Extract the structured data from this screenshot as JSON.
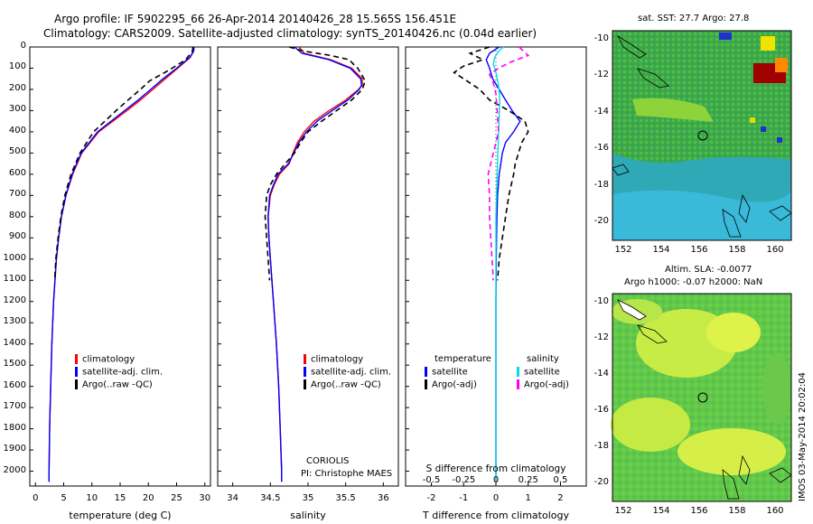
{
  "title_line1": "Argo profile: IF 5902295_66 26-Apr-2014 20140426_28 15.565S 156.451E",
  "title_line2": "Climatology: CARS2009. Satellite-adjusted climatology: synTS_20140426.nc (0.04d earlier)",
  "credit": {
    "source": "CORIOLIS",
    "pi": "PI: Christophe MAES"
  },
  "timestamp": "IMOS 03-May-2014 20:02:04",
  "map_sst": {
    "title": "sat. SST: 27.7 Argo: 27.8",
    "lon_ticks": [
      "152",
      "154",
      "156",
      "158",
      "160"
    ],
    "lat_ticks": [
      "-10",
      "-12",
      "-14",
      "-16",
      "-18",
      "-20"
    ]
  },
  "map_sla": {
    "title1": "Altim. SLA: -0.0077",
    "title2": "Argo h1000: -0.07 h2000: NaN",
    "lon_ticks": [
      "152",
      "154",
      "156",
      "158",
      "160"
    ],
    "lat_ticks": [
      "-10",
      "-12",
      "-14",
      "-16",
      "-18",
      "-20"
    ]
  },
  "colors": {
    "climatology": "#ff0000",
    "satellite": "#0000ff",
    "argo": "#000000",
    "sal_satellite": "#00e0e0",
    "sal_argo": "#ff00ff"
  },
  "chart_data": [
    {
      "type": "line",
      "name": "temperature",
      "xlabel": "temperature (deg C)",
      "ylabel": "",
      "xlim": [
        -1,
        31
      ],
      "ylim": [
        2070,
        0
      ],
      "xticks": [
        "0",
        "5",
        "10",
        "15",
        "20",
        "25",
        "30"
      ],
      "yticks": [
        "0",
        "100",
        "200",
        "300",
        "400",
        "500",
        "600",
        "700",
        "800",
        "900",
        "1000",
        "1100",
        "1200",
        "1300",
        "1400",
        "1500",
        "1600",
        "1700",
        "1800",
        "1900",
        "2000"
      ],
      "legend": [
        "climatology",
        "satellite-adj. clim.",
        "Argo(..raw -QC)"
      ],
      "series": [
        {
          "name": "climatology",
          "color": "#ff0000",
          "depth": [
            0,
            20,
            50,
            100,
            150,
            200,
            250,
            300,
            400,
            500,
            600,
            700,
            800,
            900,
            1000,
            1200,
            1400,
            1600,
            1800,
            2000,
            2050
          ],
          "values": [
            28.0,
            28.0,
            27.4,
            25.2,
            23.0,
            20.8,
            18.6,
            16.2,
            11.2,
            8.2,
            6.6,
            5.4,
            4.6,
            4.1,
            3.7,
            3.2,
            2.9,
            2.7,
            2.5,
            2.4,
            2.4
          ]
        },
        {
          "name": "satellite-adj. clim.",
          "color": "#0000ff",
          "depth": [
            0,
            20,
            50,
            100,
            150,
            200,
            250,
            300,
            400,
            500,
            600,
            700,
            800,
            900,
            1000,
            1200,
            1400,
            1600,
            1800,
            2000,
            2050
          ],
          "values": [
            28.1,
            28.0,
            27.3,
            25.0,
            22.6,
            20.4,
            18.2,
            15.8,
            11.0,
            8.1,
            6.5,
            5.4,
            4.6,
            4.1,
            3.7,
            3.2,
            2.9,
            2.7,
            2.5,
            2.4,
            2.4
          ]
        },
        {
          "name": "Argo(..raw -QC)",
          "color": "#000000",
          "depth": [
            0,
            20,
            60,
            110,
            160,
            200,
            250,
            300,
            400,
            500,
            600,
            700,
            800,
            900,
            1000,
            1100
          ],
          "values": [
            27.9,
            27.8,
            26.6,
            23.6,
            20.2,
            18.6,
            16.4,
            14.3,
            10.3,
            7.9,
            6.3,
            5.2,
            4.5,
            4.0,
            3.6,
            3.4
          ]
        }
      ]
    },
    {
      "type": "line",
      "name": "salinity",
      "xlabel": "salinity",
      "xlim": [
        33.8,
        36.2
      ],
      "ylim": [
        2070,
        0
      ],
      "xticks": [
        "34",
        "34.5",
        "35",
        "35.5",
        "36"
      ],
      "legend": [
        "climatology",
        "satellite-adj. clim.",
        "Argo(..raw -QC)"
      ],
      "series": [
        {
          "name": "climatology",
          "color": "#ff0000",
          "depth": [
            0,
            30,
            60,
            100,
            150,
            180,
            200,
            250,
            300,
            350,
            400,
            450,
            500,
            550,
            600,
            650,
            700,
            800,
            900,
            1000,
            1200,
            1400,
            1600,
            1800,
            2000,
            2050
          ],
          "values": [
            34.88,
            34.95,
            35.3,
            35.58,
            35.72,
            35.72,
            35.67,
            35.5,
            35.28,
            35.08,
            34.95,
            34.86,
            34.8,
            34.75,
            34.62,
            34.55,
            34.5,
            34.47,
            34.48,
            34.5,
            34.54,
            34.58,
            34.61,
            34.63,
            34.65,
            34.65
          ]
        },
        {
          "name": "satellite-adj. clim.",
          "color": "#0000ff",
          "depth": [
            0,
            30,
            60,
            100,
            150,
            180,
            200,
            250,
            300,
            350,
            400,
            450,
            500,
            550,
            600,
            650,
            700,
            800,
            900,
            1000,
            1200,
            1400,
            1600,
            1800,
            2000,
            2050
          ],
          "values": [
            34.82,
            34.92,
            35.28,
            35.56,
            35.7,
            35.71,
            35.68,
            35.53,
            35.32,
            35.12,
            34.98,
            34.88,
            34.81,
            34.74,
            34.6,
            34.54,
            34.49,
            34.47,
            34.48,
            34.5,
            34.54,
            34.58,
            34.61,
            34.63,
            34.65,
            34.65
          ]
        },
        {
          "name": "Argo(..raw -QC)",
          "color": "#000000",
          "depth": [
            0,
            20,
            40,
            60,
            80,
            100,
            130,
            160,
            200,
            250,
            300,
            350,
            400,
            450,
            500,
            550,
            600,
            650,
            700,
            800,
            900,
            1000,
            1100
          ],
          "values": [
            34.75,
            34.95,
            35.3,
            35.55,
            35.6,
            35.66,
            35.71,
            35.76,
            35.72,
            35.58,
            35.38,
            35.18,
            35.0,
            34.9,
            34.82,
            34.7,
            34.58,
            34.5,
            34.45,
            34.43,
            34.45,
            34.47,
            34.49
          ]
        }
      ]
    },
    {
      "type": "line",
      "name": "difference",
      "xlabel": "T difference from climatology",
      "top_xlabel": "S difference from climatology",
      "xlim": [
        -2.8,
        2.8
      ],
      "ylim": [
        2070,
        0
      ],
      "xticks": [
        "-2",
        "-1",
        "0",
        "1",
        "2"
      ],
      "top_xticks": [
        "-0.5",
        "-0.25",
        "0",
        "0.25",
        "0.5"
      ],
      "legend_t_title": "temperature",
      "legend_s_title": "salinity",
      "legend": [
        "satellite",
        "Argo(-adj)",
        "satellite",
        "Argo(-adj)"
      ],
      "series": [
        {
          "name": "T satellite",
          "color": "#0000ff",
          "depth": [
            0,
            30,
            60,
            100,
            150,
            200,
            250,
            300,
            350,
            400,
            450,
            500,
            550,
            600,
            700,
            800,
            900,
            1000,
            1200,
            1600,
            2000,
            2050
          ],
          "values": [
            0.1,
            -0.2,
            -0.3,
            -0.2,
            -0.1,
            0.1,
            0.3,
            0.5,
            0.75,
            0.55,
            0.3,
            0.2,
            0.15,
            0.1,
            0.05,
            0.03,
            0.02,
            0.01,
            0.0,
            0.0,
            0.0,
            0.0
          ]
        },
        {
          "name": "T Argo(-adj)",
          "color": "#000000",
          "depth": [
            0,
            30,
            60,
            90,
            120,
            160,
            200,
            250,
            300,
            350,
            400,
            450,
            500,
            550,
            600,
            700,
            800,
            900,
            1000,
            1100
          ],
          "values": [
            -0.2,
            -0.8,
            -0.4,
            -1.0,
            -1.3,
            -0.9,
            -0.5,
            -0.2,
            0.4,
            0.9,
            1.0,
            0.8,
            0.7,
            0.6,
            0.55,
            0.4,
            0.3,
            0.2,
            0.1,
            0.05
          ]
        },
        {
          "name": "S satellite",
          "color": "#00e0e0",
          "depth": [
            0,
            20,
            50,
            80,
            120,
            180,
            250,
            400,
            600,
            800,
            1000,
            1400,
            1800,
            2050
          ],
          "values": [
            0.06,
            0.02,
            -0.01,
            -0.02,
            0.0,
            0.02,
            0.03,
            0.02,
            0.01,
            0.0,
            0.0,
            0.0,
            0.0,
            0.0
          ]
        },
        {
          "name": "S Argo(-adj)",
          "color": "#ff00ff",
          "depth": [
            0,
            40,
            70,
            100,
            130,
            170,
            220,
            300,
            400,
            500,
            600,
            700,
            800,
            900,
            1000,
            1100
          ],
          "values": [
            0.18,
            0.25,
            0.12,
            0.02,
            -0.05,
            -0.02,
            0.0,
            0.01,
            0.02,
            -0.02,
            -0.06,
            -0.05,
            -0.05,
            -0.04,
            -0.03,
            -0.02
          ]
        }
      ]
    }
  ]
}
